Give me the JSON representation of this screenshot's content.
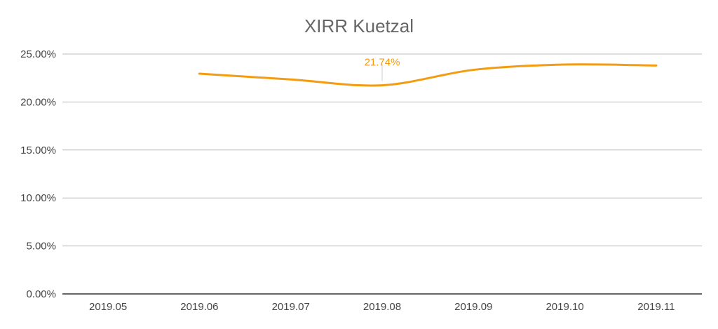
{
  "chart_data": {
    "type": "line",
    "title": "XIRR  Kuetzal",
    "xlabel": "",
    "ylabel": "",
    "categories": [
      "2019.05",
      "2019.06",
      "2019.07",
      "2019.08",
      "2019.09",
      "2019.10",
      "2019.11"
    ],
    "series": [
      {
        "values": [
          null,
          22.95,
          22.35,
          21.74,
          23.35,
          23.9,
          23.8
        ],
        "color": "#f39c12"
      }
    ],
    "y_ticks": [
      "0.00%",
      "5.00%",
      "10.00%",
      "15.00%",
      "20.00%",
      "25.00%"
    ],
    "ylim": [
      0,
      25
    ],
    "grid": true,
    "legend": "none",
    "annotations": [
      {
        "category": "2019.08",
        "value": 21.74,
        "label": "21.74%"
      }
    ]
  }
}
